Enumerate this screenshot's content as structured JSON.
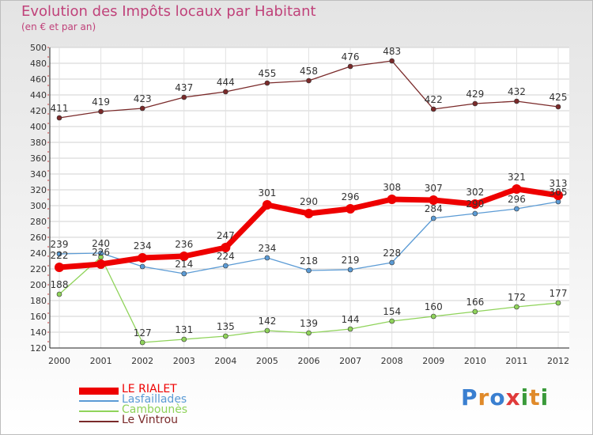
{
  "header": {
    "title": "Evolution des Impôts locaux par Habitant",
    "subtitle": "(en € et par an)"
  },
  "logo": {
    "text": "Proxiti",
    "colors": [
      "#3a7fd0",
      "#e08a2a",
      "#3a7fd0",
      "#e03a3a",
      "#3a9a3a",
      "#e08a2a",
      "#3a9a3a"
    ]
  },
  "chart_data": {
    "type": "line",
    "title": "Evolution des Impôts locaux par Habitant",
    "subtitle": "(en € et par an)",
    "xlabel": "",
    "ylabel": "",
    "x": [
      2000,
      2001,
      2002,
      2003,
      2004,
      2005,
      2006,
      2007,
      2008,
      2009,
      2010,
      2011,
      2012
    ],
    "ylim": [
      120,
      500
    ],
    "yticks": [
      120,
      140,
      160,
      180,
      200,
      220,
      240,
      260,
      280,
      300,
      320,
      340,
      360,
      380,
      400,
      420,
      440,
      460,
      480,
      500
    ],
    "grid": true,
    "legend_position": "bottom-left",
    "series": [
      {
        "name": "Le Vintrou",
        "color": "#7a2a2a",
        "values": [
          411,
          419,
          423,
          437,
          444,
          455,
          458,
          476,
          483,
          422,
          429,
          432,
          425
        ]
      },
      {
        "name": "Lasfaillades",
        "color": "#5b9bd5",
        "values": [
          239,
          240,
          223,
          214,
          224,
          234,
          218,
          219,
          228,
          284,
          290,
          296,
          305
        ]
      },
      {
        "name": "Cambounès",
        "color": "#8fd35a",
        "values": [
          188,
          235,
          127,
          131,
          135,
          142,
          139,
          144,
          154,
          160,
          166,
          172,
          177
        ]
      },
      {
        "name": "LE RIALET",
        "color": "#ee0000",
        "values": [
          222,
          226,
          234,
          236,
          247,
          301,
          290,
          296,
          308,
          307,
          302,
          321,
          313
        ]
      }
    ],
    "point_labels": [
      {
        "series": "Le Vintrou",
        "labels": [
          "411",
          "419",
          "423",
          "437",
          "444",
          "455",
          "458",
          "476",
          "483",
          "422",
          "429",
          "432",
          "425"
        ]
      },
      {
        "series": "Lasfaillades",
        "labels": [
          "239",
          "240",
          "",
          "214",
          "224",
          "234",
          "218",
          "219",
          "228",
          "284",
          "290",
          "296",
          "305"
        ]
      },
      {
        "series": "Cambounès",
        "labels": [
          "188",
          "",
          "127",
          "131",
          "135",
          "142",
          "139",
          "144",
          "154",
          "160",
          "166",
          "172",
          "177"
        ]
      },
      {
        "series": "LE RIALET",
        "labels": [
          "222",
          "226",
          "234",
          "236",
          "247",
          "301",
          "290",
          "296",
          "308",
          "307",
          "302",
          "321",
          "313"
        ]
      }
    ]
  },
  "legend": {
    "items": [
      {
        "label": "LE RIALET",
        "color": "#ee0000",
        "thick": true
      },
      {
        "label": "Lasfaillades",
        "color": "#5b9bd5",
        "thick": false
      },
      {
        "label": "Cambounès",
        "color": "#8fd35a",
        "thick": false
      },
      {
        "label": "Le Vintrou",
        "color": "#7a2a2a",
        "thick": false
      }
    ]
  }
}
